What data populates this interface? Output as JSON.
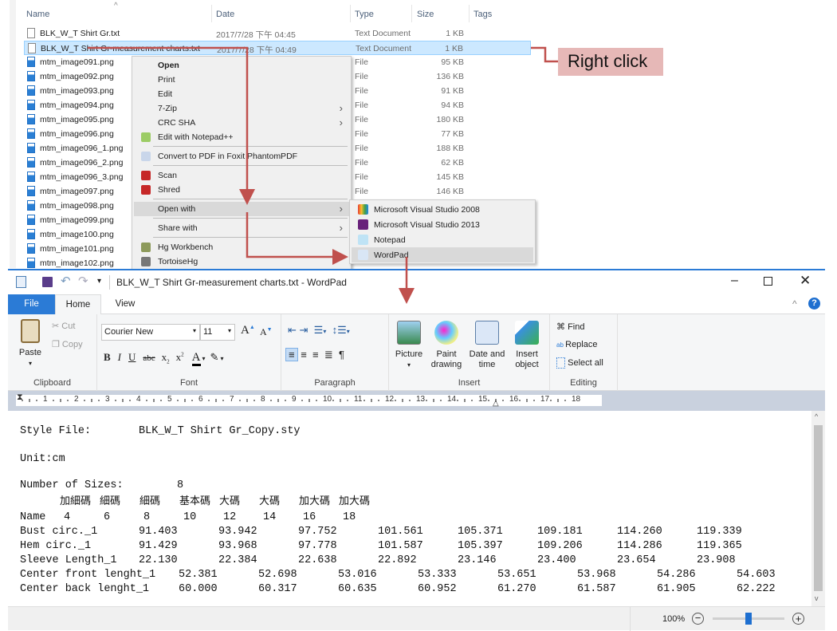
{
  "explorer": {
    "columns": [
      "Name",
      "Date",
      "Type",
      "Size",
      "Tags"
    ],
    "files": [
      {
        "name": "BLK_W_T Shirt Gr.txt",
        "date": "2017/7/28 下午 04:45",
        "type": "Text Document",
        "size": "1 KB",
        "icon": "text-file"
      },
      {
        "name": "BLK_W_T Shirt Gr-measurement charts.txt",
        "date": "2017/7/28 下午 04:49",
        "type": "Text Document",
        "size": "1 KB",
        "icon": "text-file",
        "selected": true
      },
      {
        "name": "mtm_image091.png",
        "type": "File",
        "size": "95 KB",
        "icon": "image-file"
      },
      {
        "name": "mtm_image092.png",
        "type": "File",
        "size": "136 KB",
        "icon": "image-file"
      },
      {
        "name": "mtm_image093.png",
        "type": "File",
        "size": "91 KB",
        "icon": "image-file"
      },
      {
        "name": "mtm_image094.png",
        "type": "File",
        "size": "94 KB",
        "icon": "image-file"
      },
      {
        "name": "mtm_image095.png",
        "type": "File",
        "size": "180 KB",
        "icon": "image-file"
      },
      {
        "name": "mtm_image096.png",
        "type": "File",
        "size": "77 KB",
        "icon": "image-file"
      },
      {
        "name": "mtm_image096_1.png",
        "type": "File",
        "size": "188 KB",
        "icon": "image-file"
      },
      {
        "name": "mtm_image096_2.png",
        "type": "File",
        "size": "62 KB",
        "icon": "image-file"
      },
      {
        "name": "mtm_image096_3.png",
        "type": "File",
        "size": "145 KB",
        "icon": "image-file"
      },
      {
        "name": "mtm_image097.png",
        "type": "File",
        "size": "146 KB",
        "icon": "image-file"
      },
      {
        "name": "mtm_image098.png",
        "icon": "image-file"
      },
      {
        "name": "mtm_image099.png",
        "icon": "image-file"
      },
      {
        "name": "mtm_image100.png",
        "icon": "image-file"
      },
      {
        "name": "mtm_image101.png",
        "icon": "image-file"
      },
      {
        "name": "mtm_image102.png",
        "icon": "image-file"
      }
    ]
  },
  "annotation": {
    "label": "Right click",
    "color": "#c0504d"
  },
  "context_menu": {
    "items": [
      {
        "label": "Open",
        "bold": true
      },
      {
        "label": "Print"
      },
      {
        "label": "Edit"
      },
      {
        "label": "7-Zip",
        "submenu": true
      },
      {
        "label": "CRC SHA",
        "submenu": true
      },
      {
        "label": "Edit with Notepad++",
        "icon": "notepadpp-icon",
        "sepAfter": true
      },
      {
        "label": "Convert to PDF in Foxit PhantomPDF",
        "icon": "foxit-icon",
        "sepAfter": true
      },
      {
        "label": "Scan",
        "icon": "mcafee-shield-icon"
      },
      {
        "label": "Shred",
        "icon": "mcafee-shield-icon",
        "sepAfter": true
      },
      {
        "label": "Open with",
        "submenu": true,
        "highlighted": true,
        "sepAfter": true
      },
      {
        "label": "Share with",
        "submenu": true,
        "sepAfter": true
      },
      {
        "label": "Hg Workbench",
        "icon": "hg-workbench-icon"
      },
      {
        "label": "TortoiseHg",
        "icon": "tortoisehg-icon"
      }
    ],
    "open_with": [
      {
        "label": "Microsoft Visual Studio 2008",
        "icon": "visual-studio-2008-icon"
      },
      {
        "label": "Microsoft Visual Studio 2013",
        "icon": "visual-studio-2013-icon"
      },
      {
        "label": "Notepad",
        "icon": "notepad-icon"
      },
      {
        "label": "WordPad",
        "icon": "wordpad-icon",
        "highlighted": true
      }
    ]
  },
  "wordpad": {
    "title": "BLK_W_T Shirt Gr-measurement charts.txt - WordPad",
    "tabs": [
      "File",
      "Home",
      "View"
    ],
    "active_tab": "Home",
    "accent": "#2b7bd6",
    "clipboard": {
      "paste": "Paste",
      "cut": "Cut",
      "copy": "Copy",
      "group": "Clipboard"
    },
    "font": {
      "family": "Courier New",
      "size": "11",
      "group": "Font"
    },
    "paragraph": {
      "group": "Paragraph"
    },
    "insert": {
      "picture": "Picture",
      "paint": "Paint drawing",
      "datetime": "Date and time",
      "object": "Insert object",
      "group": "Insert"
    },
    "editing": {
      "find": "Find",
      "replace": "Replace",
      "select_all": "Select all",
      "group": "Editing"
    },
    "ruler": [
      "1",
      "2",
      "3",
      "4",
      "5",
      "6",
      "7",
      "8",
      "9",
      "10",
      "11",
      "12",
      "13",
      "14",
      "15",
      "16",
      "17",
      "18"
    ],
    "zoom": "100%",
    "zoom_level_percent": 100
  },
  "document": {
    "style_label": "Style File:",
    "style_value": "BLK_W_T Shirt Gr_Copy.sty",
    "unit": "Unit:cm",
    "sizes_label": "Number of Sizes:",
    "sizes_value": "8",
    "size_names": [
      "加細碼",
      "細碼",
      "細碼",
      "基本碼",
      "大碼",
      "大碼",
      "加大碼",
      "加大碼"
    ],
    "name_row": {
      "label": "Name",
      "values": [
        "4",
        "6",
        "8",
        "10",
        "12",
        "14",
        "16",
        "18"
      ]
    },
    "rows": [
      {
        "label": "Bust circ._1",
        "values": [
          "91.403",
          "93.942",
          "97.752",
          "101.561",
          "105.371",
          "109.181",
          "114.260",
          "119.339"
        ]
      },
      {
        "label": "Hem circ._1",
        "values": [
          "91.429",
          "93.968",
          "97.778",
          "101.587",
          "105.397",
          "109.206",
          "114.286",
          "119.365"
        ]
      },
      {
        "label": "Sleeve Length_1",
        "values": [
          "22.130",
          "22.384",
          "22.638",
          "22.892",
          "23.146",
          "23.400",
          "23.654",
          "23.908"
        ]
      },
      {
        "label": "Center front lenght_1",
        "values": [
          "52.381",
          "52.698",
          "53.016",
          "53.333",
          "53.651",
          "53.968",
          "54.286",
          "54.603"
        ]
      },
      {
        "label": "Center back lenght_1",
        "values": [
          "60.000",
          "60.317",
          "60.635",
          "60.952",
          "61.270",
          "61.587",
          "61.905",
          "62.222"
        ]
      }
    ]
  }
}
